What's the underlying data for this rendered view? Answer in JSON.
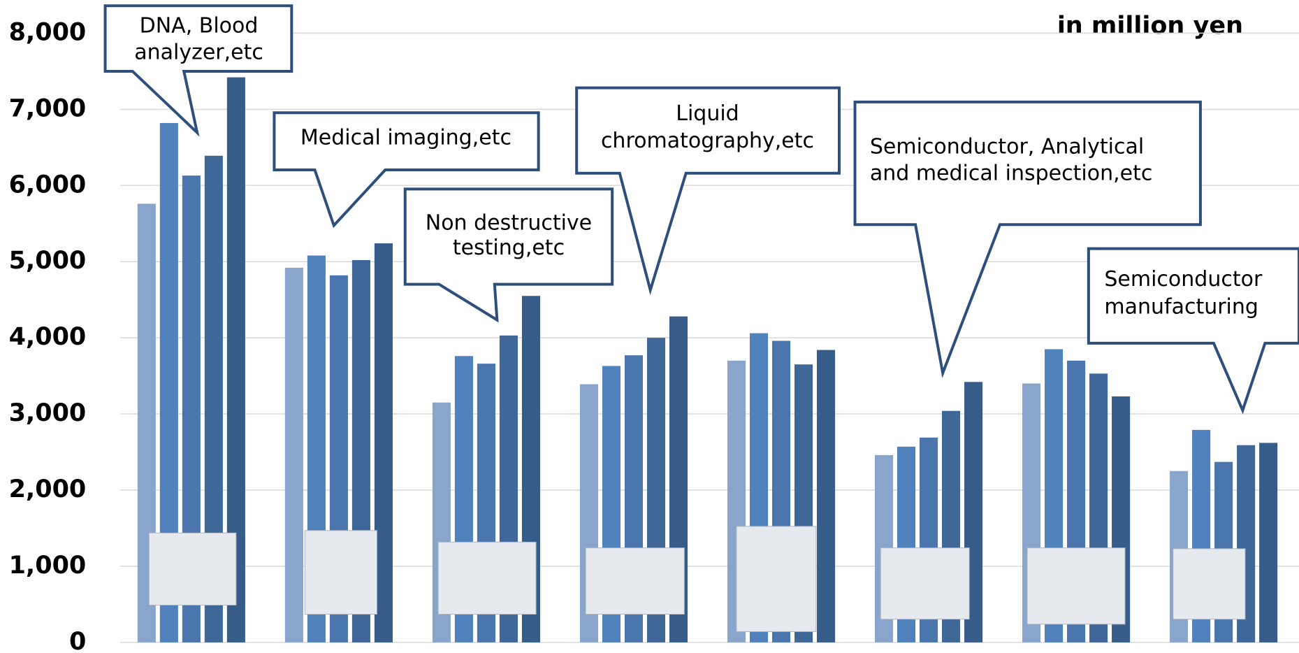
{
  "chart_data": {
    "type": "bar",
    "unit_label": "in million yen",
    "categories": [
      null,
      null,
      null,
      null,
      null,
      null,
      null,
      null
    ],
    "series": [
      {
        "color": "#8aa5cc",
        "values": [
          5760,
          4920,
          3150,
          3390,
          3700,
          2460,
          3400,
          2250
        ]
      },
      {
        "color": "#4f81bd",
        "values": [
          6820,
          5080,
          3760,
          3630,
          4060,
          2570,
          3850,
          2790
        ]
      },
      {
        "color": "#4a76ad",
        "values": [
          6130,
          4820,
          3660,
          3770,
          3960,
          2690,
          3700,
          2370
        ]
      },
      {
        "color": "#3f6797",
        "values": [
          6390,
          5020,
          4030,
          4000,
          3650,
          3040,
          3530,
          2590
        ]
      },
      {
        "color": "#365d8a",
        "values": [
          7420,
          5240,
          4550,
          4280,
          3840,
          3420,
          3230,
          2620
        ]
      }
    ],
    "ylim": [
      0,
      8000
    ],
    "yticks": [
      {
        "value": 0,
        "label": "0"
      },
      {
        "value": 1000,
        "label": "1,000"
      },
      {
        "value": 2000,
        "label": "2,000"
      },
      {
        "value": 3000,
        "label": "3,000"
      },
      {
        "value": 4000,
        "label": "4,000"
      },
      {
        "value": 5000,
        "label": "5,000"
      },
      {
        "value": 6000,
        "label": "6,000"
      },
      {
        "value": 7000,
        "label": "7,000"
      },
      {
        "value": 8000,
        "label": "8,000"
      }
    ],
    "grid": true,
    "annotations": [
      {
        "lines": [
          "DNA, Blood",
          "analyzer,etc"
        ]
      },
      {
        "lines": [
          "Medical imaging,etc"
        ]
      },
      {
        "lines": [
          "Non destructive",
          "testing,etc"
        ]
      },
      {
        "lines": [
          "Liquid",
          "chromatography,etc"
        ]
      },
      {
        "lines": [
          "Semiconductor, Analytical",
          "and medical inspection,etc"
        ]
      },
      {
        "lines": [
          "Semiconductor",
          "manufacturing"
        ]
      }
    ]
  }
}
